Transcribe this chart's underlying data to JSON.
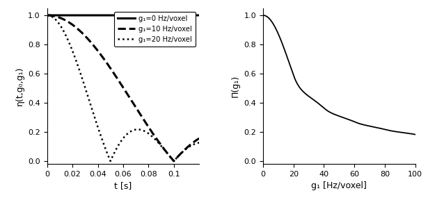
{
  "left_xlim": [
    0,
    0.12
  ],
  "left_ylim": [
    -0.02,
    1.05
  ],
  "left_xlabel": "t [s]",
  "left_ylabel": "η(t,g₀,g₁)",
  "left_xticks": [
    0,
    0.02,
    0.04,
    0.06,
    0.08,
    0.1
  ],
  "left_yticks": [
    0,
    0.2,
    0.4,
    0.6,
    0.8,
    1
  ],
  "legend_entries": [
    {
      "label": "g₁=0 Hz/voxel",
      "linestyle": "solid",
      "color": "black",
      "linewidth": 2.2
    },
    {
      "label": "g₁=10 Hz/voxel",
      "linestyle": "dashed",
      "color": "black",
      "linewidth": 2.2
    },
    {
      "label": "g₁=20 Hz/voxel",
      "linestyle": "dotted",
      "color": "black",
      "linewidth": 1.8
    }
  ],
  "g1_values": [
    0,
    10,
    20
  ],
  "right_xlim": [
    0,
    100
  ],
  "right_ylim": [
    -0.02,
    1.05
  ],
  "right_xlabel": "g₁ [Hz/voxel]",
  "right_ylabel": "Π(g₁)",
  "right_xticks": [
    0,
    20,
    40,
    60,
    80,
    100
  ],
  "right_yticks": [
    0,
    0.2,
    0.4,
    0.6,
    0.8,
    1
  ],
  "line_color": "black",
  "line_linewidth": 1.3,
  "background_color": "white",
  "T": 0.12,
  "T_acq": 0.12,
  "Pi_T": 0.05
}
